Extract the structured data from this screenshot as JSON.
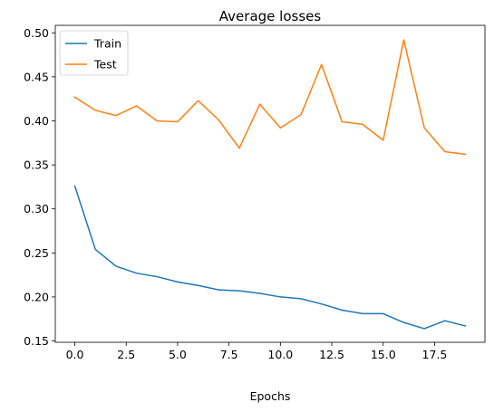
{
  "chart_data": {
    "type": "line",
    "title": "Average losses",
    "xlabel": "Epochs",
    "ylabel": "",
    "xlim": [
      -0.95,
      19.95
    ],
    "ylim": [
      0.1485,
      0.5085
    ],
    "xticks": [
      "0.0",
      "2.5",
      "5.0",
      "7.5",
      "10.0",
      "12.5",
      "15.0",
      "17.5"
    ],
    "xtick_values": [
      0,
      2.5,
      5,
      7.5,
      10,
      12.5,
      15,
      17.5
    ],
    "yticks": [
      "0.15",
      "0.20",
      "0.25",
      "0.30",
      "0.35",
      "0.40",
      "0.45",
      "0.50"
    ],
    "ytick_values": [
      0.15,
      0.2,
      0.25,
      0.3,
      0.35,
      0.4,
      0.45,
      0.5
    ],
    "grid": false,
    "legend_position": "top-left",
    "x": [
      0,
      1,
      2,
      3,
      4,
      5,
      6,
      7,
      8,
      9,
      10,
      11,
      12,
      13,
      14,
      15,
      16,
      17,
      18,
      19
    ],
    "series": [
      {
        "name": "Train",
        "color": "#1f77b4",
        "values": [
          0.326,
          0.254,
          0.235,
          0.227,
          0.223,
          0.217,
          0.213,
          0.208,
          0.207,
          0.204,
          0.2,
          0.198,
          0.192,
          0.185,
          0.181,
          0.181,
          0.171,
          0.164,
          0.173,
          0.167
        ]
      },
      {
        "name": "Test",
        "color": "#ff7f0e",
        "values": [
          0.427,
          0.412,
          0.406,
          0.417,
          0.4,
          0.399,
          0.423,
          0.401,
          0.369,
          0.419,
          0.392,
          0.407,
          0.464,
          0.399,
          0.396,
          0.378,
          0.492,
          0.392,
          0.365,
          0.362
        ]
      }
    ]
  }
}
